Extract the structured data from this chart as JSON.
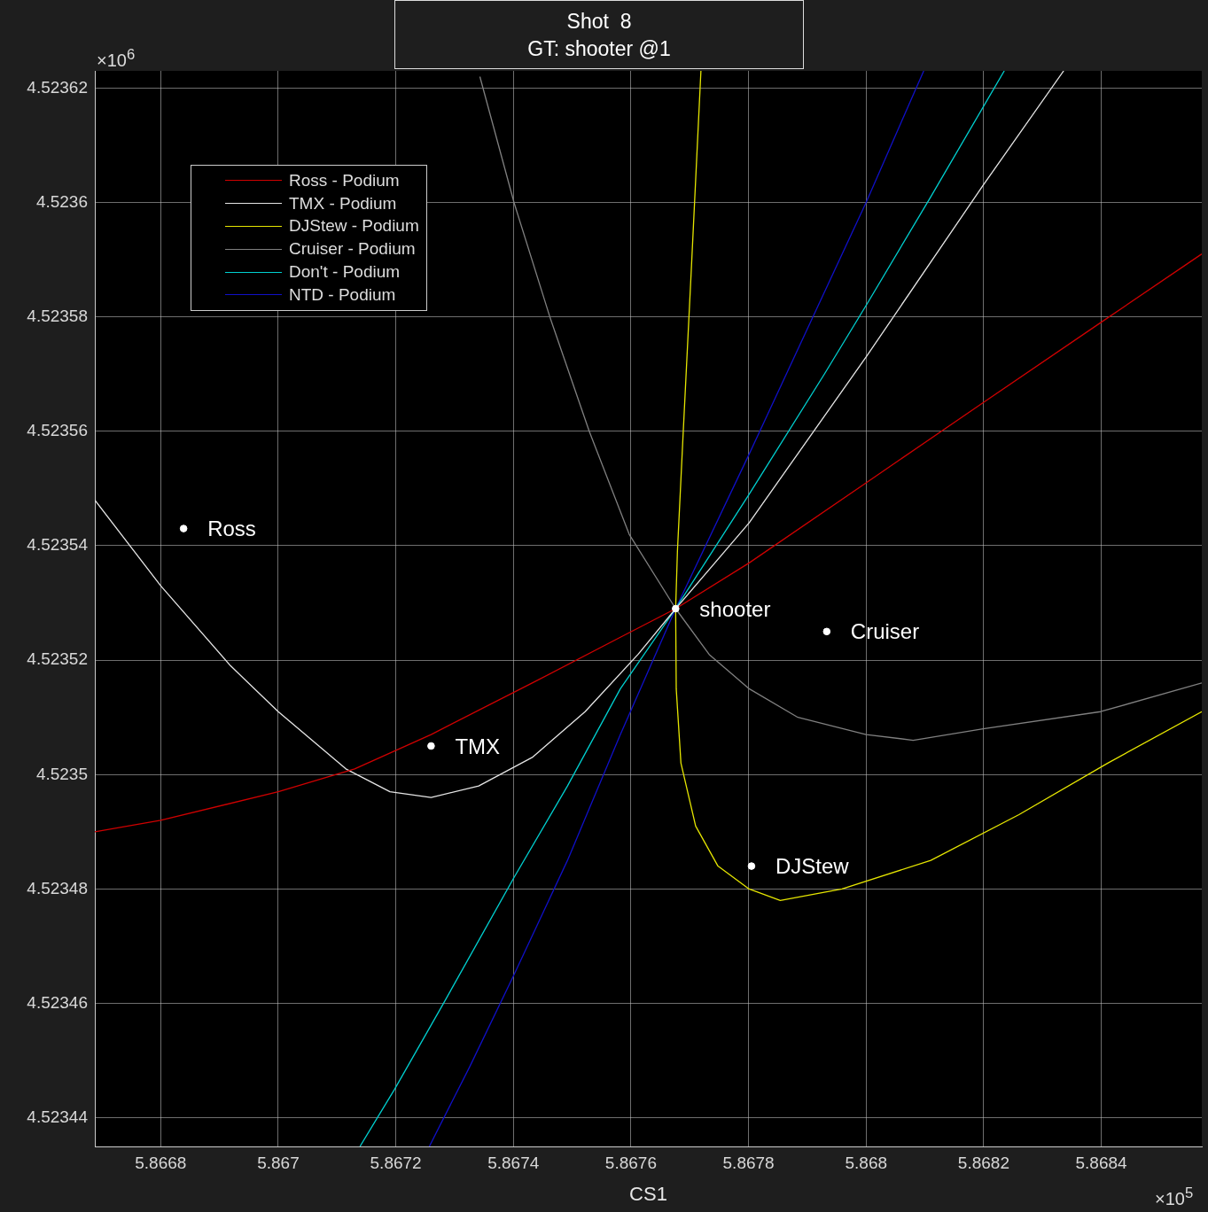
{
  "chart_data": {
    "type": "line",
    "title": "Shot  8",
    "subtitle": "GT: shooter @1",
    "xlabel": "CS1",
    "xlim": [
      5.866688,
      5.868571
    ],
    "ylim": [
      4.523435,
      4.523623
    ],
    "xticks": [
      5.8668,
      5.867,
      5.8672,
      5.8674,
      5.8676,
      5.8678,
      5.868,
      5.8682,
      5.8684
    ],
    "yticks": [
      4.52344,
      4.52346,
      4.52348,
      4.5235,
      4.52352,
      4.52354,
      4.52356,
      4.52358,
      4.5236,
      4.52362
    ],
    "grid": true,
    "legend": "top left",
    "series": [
      {
        "name": "Ross - Podium",
        "color": "#d00000",
        "x": [
          5.866688,
          5.8668,
          5.867,
          5.86713,
          5.86726,
          5.867432,
          5.867582,
          5.867676,
          5.867801,
          5.868,
          5.868199,
          5.868399,
          5.868571
        ],
        "values": [
          4.52349,
          4.523492,
          4.523497,
          4.523501,
          4.523507,
          4.523516,
          4.523524,
          4.523529,
          4.523537,
          4.523551,
          4.523565,
          4.523579,
          4.523591
        ]
      },
      {
        "name": "TMX - Podium",
        "color": "#e6e6e6",
        "x": [
          5.866688,
          5.8668,
          5.866919,
          5.867,
          5.867115,
          5.86719,
          5.86726,
          5.867341,
          5.867432,
          5.867522,
          5.867612,
          5.867676,
          5.867801,
          5.868,
          5.868199,
          5.868336
        ],
        "values": [
          4.523548,
          4.523533,
          4.523519,
          4.523511,
          4.523501,
          4.523497,
          4.523496,
          4.523498,
          4.523503,
          4.523511,
          4.523521,
          4.523529,
          4.523544,
          4.523573,
          4.523603,
          4.523623
        ]
      },
      {
        "name": "DJStew - Podium",
        "color": "#e6e600",
        "x": [
          5.867719,
          5.867703,
          5.867688,
          5.867679,
          5.867676,
          5.867677,
          5.867685,
          5.86771,
          5.867748,
          5.867801,
          5.867854,
          5.867959,
          5.86811,
          5.86826,
          5.868411,
          5.868571
        ],
        "values": [
          4.523623,
          4.523589,
          4.523558,
          4.523539,
          4.523529,
          4.523515,
          4.523502,
          4.523491,
          4.523484,
          4.52348,
          4.523478,
          4.52348,
          4.523485,
          4.523493,
          4.523502,
          4.523511
        ]
      },
      {
        "name": "Cruiser - Podium",
        "color": "#808080",
        "x": [
          5.867343,
          5.867401,
          5.867462,
          5.867529,
          5.867597,
          5.867676,
          5.867733,
          5.867801,
          5.867884,
          5.868,
          5.86808,
          5.868199,
          5.868399,
          5.868571
        ],
        "values": [
          4.523622,
          4.5236,
          4.52358,
          4.52356,
          4.523542,
          4.523529,
          4.523521,
          4.523515,
          4.52351,
          4.523507,
          4.523506,
          4.523508,
          4.523511,
          4.523516
        ]
      },
      {
        "name": "Don't - Podium",
        "color": "#00d0d0",
        "x": [
          5.867139,
          5.867198,
          5.867281,
          5.867401,
          5.867492,
          5.867582,
          5.867676,
          5.867801,
          5.867929,
          5.868,
          5.86811,
          5.868235
        ],
        "values": [
          4.523435,
          4.523445,
          4.52346,
          4.523482,
          4.523498,
          4.523515,
          4.523529,
          4.523549,
          4.52357,
          4.523582,
          4.523601,
          4.523623
        ]
      },
      {
        "name": "NTD - Podium",
        "color": "#1010c8",
        "x": [
          5.867257,
          5.867326,
          5.867401,
          5.867492,
          5.867582,
          5.867676,
          5.867801,
          5.867914,
          5.868,
          5.868098
        ],
        "values": [
          4.523435,
          4.523449,
          4.523465,
          4.523485,
          4.523507,
          4.523529,
          4.523556,
          4.523581,
          4.5236,
          4.523623
        ]
      },
      {
        "type": "scatter",
        "marker": "circle",
        "color": "#ffffff",
        "x": [
          5.866839,
          5.86726,
          5.867676,
          5.867933,
          5.867805
        ],
        "values": [
          4.523543,
          4.523505,
          4.523529,
          4.523525,
          4.523484
        ]
      }
    ],
    "annotations": [
      "×10$^{6}$",
      "×10$^{5}$",
      {
        "text": "Ross",
        "x": 5.866839,
        "y": 4.523543
      },
      {
        "text": "TMX",
        "x": 5.86726,
        "y": 4.523505
      },
      {
        "text": "shooter",
        "x": 5.867676,
        "y": 4.523529
      },
      {
        "text": "Cruiser",
        "x": 5.867933,
        "y": 4.523525
      },
      {
        "text": "DJStew",
        "x": 5.867805,
        "y": 4.523484
      }
    ]
  }
}
